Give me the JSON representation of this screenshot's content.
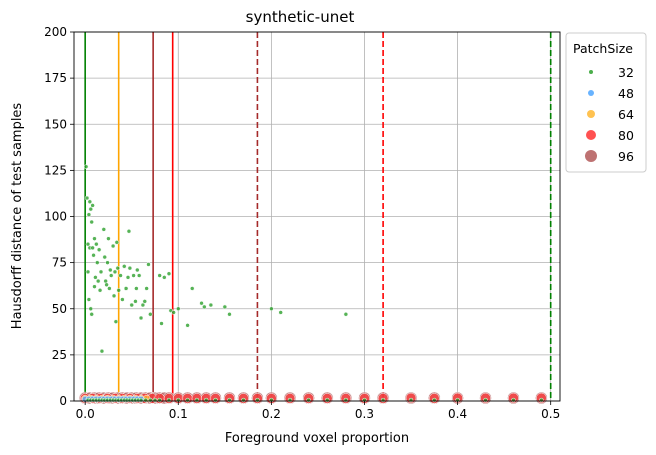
{
  "chart_data": {
    "type": "scatter",
    "title": "synthetic-unet",
    "xlabel": "Foreground voxel proportion",
    "ylabel": "Hausdorff distance of test samples",
    "xlim": [
      -0.012,
      0.51
    ],
    "ylim": [
      0,
      200
    ],
    "x_ticks": [
      0.0,
      0.1,
      0.2,
      0.3,
      0.4,
      0.5
    ],
    "x_tick_labels": [
      "0.0",
      "0.1",
      "0.2",
      "0.3",
      "0.4",
      "0.5"
    ],
    "y_ticks": [
      0,
      25,
      50,
      75,
      100,
      125,
      150,
      175,
      200
    ],
    "y_tick_labels": [
      "0",
      "25",
      "50",
      "75",
      "100",
      "125",
      "150",
      "175",
      "200"
    ],
    "grid": true,
    "legend": {
      "title": "PatchSize",
      "placement": "outside-top-right",
      "entries": [
        {
          "label": "32",
          "color": "#2ca02c"
        },
        {
          "label": "48",
          "color": "#4da6ff"
        },
        {
          "label": "64",
          "color": "#ffb733"
        },
        {
          "label": "80",
          "color": "#ff3333"
        },
        {
          "label": "96",
          "color": "#b35959"
        }
      ]
    },
    "vertical_lines": [
      {
        "x": 0.0,
        "color": "#008000",
        "style": "solid"
      },
      {
        "x": 0.036,
        "color": "#ffa500",
        "style": "solid"
      },
      {
        "x": 0.073,
        "color": "#a52a2a",
        "style": "solid"
      },
      {
        "x": 0.094,
        "color": "#ff0000",
        "style": "solid"
      },
      {
        "x": 0.185,
        "color": "#a52a2a",
        "style": "dashed"
      },
      {
        "x": 0.32,
        "color": "#ff0000",
        "style": "dashed"
      },
      {
        "x": 0.5,
        "color": "#008000",
        "style": "dashed"
      }
    ],
    "series": [
      {
        "name": "96",
        "color": "#b35959",
        "x": [
          0.0,
          0.005,
          0.01,
          0.015,
          0.02,
          0.025,
          0.03,
          0.035,
          0.04,
          0.045,
          0.05,
          0.055,
          0.06,
          0.065,
          0.07,
          0.075,
          0.08,
          0.085,
          0.09,
          0.1,
          0.11,
          0.12,
          0.13,
          0.14,
          0.155,
          0.17,
          0.185,
          0.2,
          0.22,
          0.24,
          0.26,
          0.28,
          0.3,
          0.32,
          0.35,
          0.375,
          0.4,
          0.43,
          0.46,
          0.49
        ],
        "y": [
          1.6,
          1.6,
          1.6,
          1.6,
          1.6,
          1.6,
          1.6,
          1.6,
          1.6,
          1.6,
          1.6,
          1.6,
          1.6,
          1.6,
          1.6,
          1.6,
          1.6,
          1.6,
          1.6,
          1.6,
          1.6,
          1.6,
          1.6,
          1.6,
          1.6,
          1.6,
          1.6,
          1.6,
          1.6,
          1.6,
          1.6,
          1.6,
          1.6,
          1.6,
          1.6,
          1.6,
          1.6,
          1.6,
          1.6,
          1.6
        ]
      },
      {
        "name": "80",
        "color": "#ff3333",
        "x": [
          0.0,
          0.008,
          0.016,
          0.024,
          0.032,
          0.04,
          0.048,
          0.056,
          0.064,
          0.072,
          0.08,
          0.09,
          0.1,
          0.11,
          0.12,
          0.13,
          0.14,
          0.155,
          0.17,
          0.185,
          0.2,
          0.22,
          0.24,
          0.26,
          0.28,
          0.3,
          0.32,
          0.35,
          0.375,
          0.4,
          0.43,
          0.46,
          0.49
        ],
        "y": [
          1.4,
          1.4,
          1.4,
          1.4,
          1.4,
          1.4,
          1.4,
          1.4,
          1.4,
          1.4,
          1.4,
          1.4,
          1.4,
          1.4,
          1.4,
          1.4,
          1.4,
          1.4,
          1.4,
          1.4,
          1.4,
          1.4,
          1.4,
          1.4,
          1.4,
          1.4,
          1.4,
          1.6,
          1.4,
          1.6,
          1.6,
          1.6,
          1.6
        ]
      },
      {
        "name": "64",
        "color": "#ffb733",
        "x": [
          0.0,
          0.006,
          0.012,
          0.018,
          0.024,
          0.03,
          0.036,
          0.042,
          0.048,
          0.054,
          0.06,
          0.066
        ],
        "y": [
          1.2,
          1.2,
          1.2,
          1.2,
          1.2,
          1.2,
          1.2,
          1.2,
          1.2,
          1.2,
          1.2,
          1.2
        ]
      },
      {
        "name": "48",
        "color": "#4da6ff",
        "x": [
          0.0,
          0.004,
          0.008,
          0.012,
          0.016,
          0.02,
          0.024,
          0.028,
          0.032,
          0.036,
          0.04,
          0.044,
          0.048,
          0.052,
          0.056,
          0.06
        ],
        "y": [
          1.0,
          1.0,
          1.0,
          1.0,
          1.0,
          1.0,
          1.0,
          1.0,
          1.0,
          1.0,
          1.0,
          1.0,
          1.0,
          1.0,
          1.0,
          1.0
        ]
      },
      {
        "name": "32",
        "color": "#2ca02c",
        "x": [
          0.001,
          0.002,
          0.003,
          0.003,
          0.004,
          0.004,
          0.005,
          0.005,
          0.006,
          0.006,
          0.007,
          0.007,
          0.008,
          0.008,
          0.009,
          0.01,
          0.01,
          0.011,
          0.012,
          0.013,
          0.014,
          0.015,
          0.016,
          0.017,
          0.018,
          0.02,
          0.021,
          0.022,
          0.023,
          0.024,
          0.025,
          0.026,
          0.027,
          0.028,
          0.03,
          0.031,
          0.032,
          0.033,
          0.034,
          0.035,
          0.036,
          0.038,
          0.04,
          0.042,
          0.044,
          0.046,
          0.047,
          0.048,
          0.05,
          0.052,
          0.054,
          0.055,
          0.056,
          0.058,
          0.06,
          0.062,
          0.064,
          0.066,
          0.068,
          0.07,
          0.08,
          0.082,
          0.085,
          0.09,
          0.092,
          0.095,
          0.1,
          0.11,
          0.115,
          0.125,
          0.128,
          0.135,
          0.15,
          0.155,
          0.2,
          0.21,
          0.28,
          0.003,
          0.006,
          0.009,
          0.012,
          0.015,
          0.018,
          0.021,
          0.024,
          0.027,
          0.03,
          0.033,
          0.036,
          0.039,
          0.042,
          0.045,
          0.048,
          0.051,
          0.054,
          0.057,
          0.06,
          0.065,
          0.07,
          0.075,
          0.08,
          0.09,
          0.1,
          0.11,
          0.12,
          0.13,
          0.14,
          0.155,
          0.17,
          0.185,
          0.2,
          0.22,
          0.24,
          0.26,
          0.28,
          0.3,
          0.32,
          0.35,
          0.375,
          0.4,
          0.43,
          0.46,
          0.49
        ],
        "y": [
          127,
          110,
          85,
          70,
          101,
          55,
          108,
          83,
          104,
          50,
          97,
          47,
          106,
          83,
          79,
          88,
          62,
          67,
          85,
          75,
          65,
          82,
          60,
          70,
          27,
          93,
          78,
          65,
          63,
          75,
          88,
          61,
          71,
          68,
          84,
          57,
          70,
          43,
          86,
          72,
          60,
          68,
          55,
          73,
          61,
          67,
          92,
          72,
          52,
          68,
          54,
          61,
          71,
          68,
          45,
          52,
          54,
          61,
          74,
          47,
          68,
          42,
          67,
          69,
          49,
          48,
          50,
          41,
          61,
          53,
          51,
          52,
          51,
          47,
          50,
          48,
          47,
          0.5,
          0.5,
          0.5,
          0.5,
          0.5,
          0.5,
          0.5,
          0.5,
          0.5,
          0.5,
          0.5,
          0.5,
          0.5,
          0.5,
          0.5,
          0.5,
          0.5,
          0.5,
          0.5,
          0.5,
          0.5,
          0.5,
          0.5,
          0.5,
          0.5,
          0.5,
          0.5,
          0.5,
          0.5,
          0.5,
          0.5,
          0.5,
          0.5,
          0.5,
          0.5,
          0.5,
          0.5,
          0.5,
          0.5,
          0.5,
          0.5,
          0.5,
          0.5,
          0.5,
          0.5,
          0.5
        ]
      }
    ]
  }
}
